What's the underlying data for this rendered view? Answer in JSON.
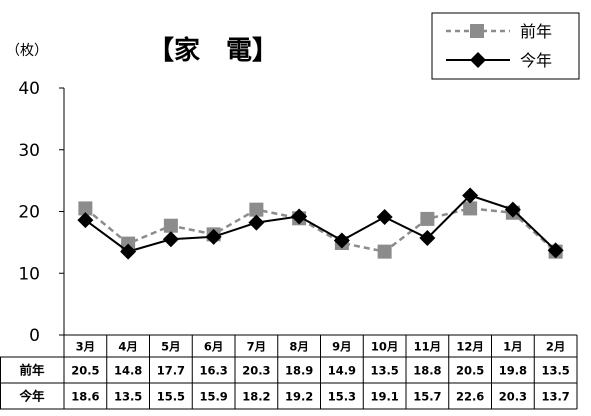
{
  "unit_label": "（枚）",
  "title": "【家　電】",
  "chart_data": {
    "type": "line",
    "title": "【家　電】",
    "ylabel": "（枚）",
    "xlabel": "",
    "ylim": [
      0,
      40
    ],
    "yticks": [
      "0",
      "10",
      "20",
      "30",
      "40"
    ],
    "grid": false,
    "legend": "top-right",
    "categories": [
      "3月",
      "4月",
      "5月",
      "6月",
      "7月",
      "8月",
      "9月",
      "10月",
      "11月",
      "12月",
      "1月",
      "2月"
    ],
    "series": [
      {
        "name": "前年",
        "values": [
          20.5,
          14.8,
          17.7,
          16.3,
          20.3,
          18.9,
          14.9,
          13.5,
          18.8,
          20.5,
          19.8,
          13.5
        ],
        "labels": [
          "20.5",
          "14.8",
          "17.7",
          "16.3",
          "20.3",
          "18.9",
          "14.9",
          "13.5",
          "18.8",
          "20.5",
          "19.8",
          "13.5"
        ],
        "color": "#8c8c8c",
        "line": "dashed",
        "marker": "square"
      },
      {
        "name": "今年",
        "values": [
          18.6,
          13.5,
          15.5,
          15.9,
          18.2,
          19.2,
          15.3,
          19.1,
          15.7,
          22.6,
          20.3,
          13.7
        ],
        "labels": [
          "18.6",
          "13.5",
          "15.5",
          "15.9",
          "18.2",
          "19.2",
          "15.3",
          "19.1",
          "15.7",
          "22.6",
          "20.3",
          "13.7"
        ],
        "color": "#000000",
        "line": "solid",
        "marker": "diamond"
      }
    ]
  }
}
